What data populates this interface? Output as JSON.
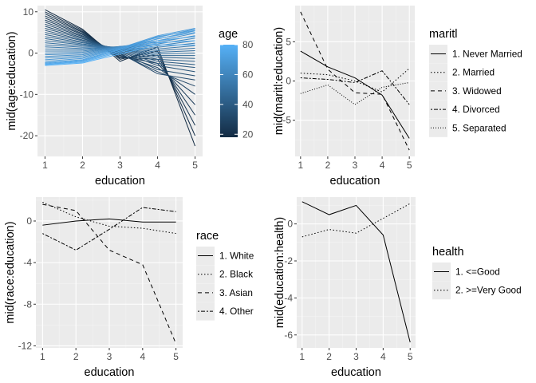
{
  "chart_data": [
    {
      "type": "line",
      "id": "p1",
      "xlabel": "education",
      "ylabel": "mid(age:education)",
      "x": [
        1,
        2,
        3,
        4,
        5
      ],
      "xticks": [
        1,
        2,
        3,
        4,
        5
      ],
      "ylim": [
        -25,
        11.5
      ],
      "yticks": [
        -20,
        -10,
        0,
        10
      ],
      "legend": {
        "title": "age",
        "type": "colorbar",
        "range": [
          18,
          80
        ],
        "ticks": [
          20,
          40,
          60,
          80
        ],
        "low_color": "#132B43",
        "high_color": "#56B1F7"
      },
      "series": [
        {
          "age": 18,
          "values": [
            10.5,
            5.8,
            -2.0,
            1.5,
            -22.5
          ]
        },
        {
          "age": 20,
          "values": [
            10.0,
            5.5,
            -1.5,
            0.5,
            -20.0
          ]
        },
        {
          "age": 22,
          "values": [
            9.5,
            5.2,
            -1.2,
            -0.5,
            -17.5
          ]
        },
        {
          "age": 24,
          "values": [
            9.0,
            5.0,
            -1.0,
            -1.5,
            -15.0
          ]
        },
        {
          "age": 26,
          "values": [
            8.5,
            4.7,
            -0.7,
            -2.5,
            -12.5
          ]
        },
        {
          "age": 28,
          "values": [
            8.0,
            4.5,
            -0.5,
            -3.5,
            -10.0
          ]
        },
        {
          "age": 30,
          "values": [
            7.5,
            4.2,
            -0.2,
            -4.5,
            -8.0
          ]
        },
        {
          "age": 32,
          "values": [
            7.0,
            4.0,
            0.0,
            -5.0,
            -6.5
          ]
        },
        {
          "age": 34,
          "values": [
            6.5,
            3.7,
            0.2,
            -4.0,
            -5.5
          ]
        },
        {
          "age": 36,
          "values": [
            6.0,
            3.5,
            0.4,
            -3.0,
            -4.5
          ]
        },
        {
          "age": 38,
          "values": [
            5.5,
            3.2,
            0.6,
            -2.5,
            -3.5
          ]
        },
        {
          "age": 40,
          "values": [
            5.0,
            3.0,
            0.8,
            -2.0,
            -2.8
          ]
        },
        {
          "age": 42,
          "values": [
            4.5,
            2.7,
            1.0,
            -1.5,
            -2.0
          ]
        },
        {
          "age": 44,
          "values": [
            4.0,
            2.5,
            1.1,
            -1.0,
            -1.3
          ]
        },
        {
          "age": 46,
          "values": [
            3.5,
            2.2,
            1.2,
            -0.6,
            -0.6
          ]
        },
        {
          "age": 48,
          "values": [
            3.0,
            2.0,
            1.3,
            -0.2,
            0.0
          ]
        },
        {
          "age": 50,
          "values": [
            2.5,
            1.7,
            1.4,
            0.2,
            0.6
          ]
        },
        {
          "age": 52,
          "values": [
            2.0,
            1.4,
            1.5,
            0.6,
            1.2
          ]
        },
        {
          "age": 54,
          "values": [
            1.5,
            1.1,
            1.5,
            1.0,
            1.8
          ]
        },
        {
          "age": 56,
          "values": [
            1.0,
            0.8,
            1.6,
            1.4,
            2.4
          ]
        },
        {
          "age": 58,
          "values": [
            0.5,
            0.5,
            1.6,
            1.8,
            3.0
          ]
        },
        {
          "age": 60,
          "values": [
            0.0,
            0.2,
            1.6,
            2.2,
            3.6
          ]
        },
        {
          "age": 62,
          "values": [
            -0.4,
            -0.1,
            1.6,
            2.6,
            4.2
          ]
        },
        {
          "age": 64,
          "values": [
            -0.8,
            -0.4,
            1.5,
            3.0,
            4.8
          ]
        },
        {
          "age": 66,
          "values": [
            -1.2,
            -0.7,
            1.4,
            3.4,
            5.4
          ]
        },
        {
          "age": 68,
          "values": [
            -1.6,
            -1.0,
            1.3,
            3.8,
            5.8
          ]
        },
        {
          "age": 70,
          "values": [
            -2.0,
            -1.3,
            1.2,
            4.2,
            6.0
          ]
        },
        {
          "age": 72,
          "values": [
            -2.3,
            -1.6,
            1.0,
            4.0,
            5.5
          ]
        },
        {
          "age": 74,
          "values": [
            -2.5,
            -1.8,
            0.8,
            3.5,
            5.0
          ]
        },
        {
          "age": 76,
          "values": [
            -2.7,
            -2.0,
            0.5,
            3.0,
            4.0
          ]
        },
        {
          "age": 78,
          "values": [
            -2.8,
            -2.2,
            0.2,
            2.5,
            3.0
          ]
        },
        {
          "age": 80,
          "values": [
            -3.0,
            -2.4,
            -0.2,
            2.0,
            2.0
          ]
        }
      ]
    },
    {
      "type": "line",
      "id": "p2",
      "xlabel": "education",
      "ylabel": "mid(maritl:education)",
      "x": [
        1,
        2,
        3,
        4,
        5
      ],
      "xticks": [
        1,
        2,
        3,
        4,
        5
      ],
      "ylim": [
        -9.6,
        9.6
      ],
      "yticks": [
        -5,
        0,
        5
      ],
      "legend": {
        "title": "maritl"
      },
      "series": [
        {
          "name": "1. Never Married",
          "dash": "",
          "values": [
            3.8,
            1.8,
            0.4,
            -1.8,
            -7.3
          ]
        },
        {
          "name": "2. Married",
          "dash": "1.5,2.5",
          "values": [
            1.0,
            0.8,
            0.0,
            -1.4,
            1.6
          ]
        },
        {
          "name": "3. Widowed",
          "dash": "5,4",
          "values": [
            8.8,
            1.5,
            -1.5,
            -1.7,
            -8.8
          ]
        },
        {
          "name": "4. Divorced",
          "dash": "2,2,5,2",
          "values": [
            0.4,
            0.2,
            -0.2,
            1.3,
            -3.0
          ]
        },
        {
          "name": "5. Separated",
          "dash": "1,2",
          "values": [
            -1.6,
            -0.5,
            -3.0,
            -0.8,
            -0.2
          ]
        }
      ]
    },
    {
      "type": "line",
      "id": "p3",
      "xlabel": "education",
      "ylabel": "mid(race:education)",
      "x": [
        1,
        2,
        3,
        4,
        5
      ],
      "xticks": [
        1,
        2,
        3,
        4,
        5
      ],
      "ylim": [
        -12.2,
        2.3
      ],
      "yticks": [
        -12,
        -8,
        -4,
        0
      ],
      "legend": {
        "title": "race"
      },
      "series": [
        {
          "name": "1. White",
          "dash": "",
          "values": [
            -0.4,
            0.0,
            0.2,
            -0.1,
            -0.1
          ]
        },
        {
          "name": "2. Black",
          "dash": "1.5,2.5",
          "values": [
            1.8,
            0.4,
            -0.5,
            -0.7,
            -1.2
          ]
        },
        {
          "name": "3. Asian",
          "dash": "5,4",
          "values": [
            1.6,
            1.0,
            -2.8,
            -4.2,
            -11.8
          ]
        },
        {
          "name": "4. Other",
          "dash": "2,2,5,2",
          "values": [
            -1.2,
            -2.8,
            -0.8,
            1.3,
            0.9
          ]
        }
      ]
    },
    {
      "type": "line",
      "id": "p4",
      "xlabel": "education",
      "ylabel": "mid(education:health)",
      "x": [
        1,
        2,
        3,
        4,
        5
      ],
      "xticks": [
        1,
        2,
        3,
        4,
        5
      ],
      "ylim": [
        -6.7,
        1.45
      ],
      "yticks": [
        -6,
        -4,
        -2,
        0
      ],
      "legend": {
        "title": "health"
      },
      "series": [
        {
          "name": "1. <=Good",
          "dash": "",
          "values": [
            1.2,
            0.5,
            1.0,
            -0.6,
            -6.4
          ]
        },
        {
          "name": "2. >=Very Good",
          "dash": "1.5,2.5",
          "values": [
            -0.7,
            -0.3,
            -0.5,
            0.3,
            1.1
          ]
        }
      ]
    }
  ]
}
